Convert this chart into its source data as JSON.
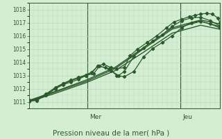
{
  "title": "Pression niveau de la mer( hPa )",
  "bg_color": "#d4eed4",
  "grid_color": "#b8d8b8",
  "line_color": "#2d5a2d",
  "ylim": [
    1010.5,
    1018.5
  ],
  "yticks": [
    1011,
    1012,
    1013,
    1014,
    1015,
    1016,
    1017,
    1018
  ],
  "xlim": [
    0.0,
    1.0
  ],
  "vline_mer": 0.305,
  "vline_jeu": 0.795,
  "series": [
    {
      "x": [
        0.0,
        0.04,
        0.09,
        0.14,
        0.18,
        0.22,
        0.26,
        0.3,
        0.33,
        0.36,
        0.39,
        0.43,
        0.46,
        0.5,
        0.53,
        0.57,
        0.62,
        0.67,
        0.72,
        0.76,
        0.8,
        0.84,
        0.87,
        0.9,
        0.93,
        0.96,
        0.99,
        1.0
      ],
      "y": [
        1011.05,
        1011.1,
        1011.5,
        1012.0,
        1012.3,
        1012.5,
        1012.7,
        1013.0,
        1013.2,
        1013.7,
        1013.85,
        1013.6,
        1013.5,
        1013.6,
        1014.5,
        1015.0,
        1015.5,
        1016.0,
        1016.6,
        1017.05,
        1017.25,
        1017.45,
        1017.55,
        1017.65,
        1017.7,
        1017.65,
        1017.35,
        1017.0
      ],
      "marker": "D",
      "ms": 2.2,
      "lw": 0.9
    },
    {
      "x": [
        0.0,
        0.04,
        0.09,
        0.14,
        0.18,
        0.22,
        0.26,
        0.3,
        0.33,
        0.36,
        0.4,
        0.43,
        0.47,
        0.5,
        0.55,
        0.6,
        0.65,
        0.7,
        0.75,
        0.8,
        0.85,
        0.9,
        0.95,
        1.0
      ],
      "y": [
        1011.15,
        1011.2,
        1011.6,
        1012.1,
        1012.4,
        1012.65,
        1012.85,
        1013.05,
        1013.25,
        1013.7,
        1013.6,
        1013.35,
        1013.0,
        1013.3,
        1014.45,
        1015.1,
        1015.6,
        1016.1,
        1016.7,
        1017.15,
        1017.35,
        1017.4,
        1017.15,
        1016.75
      ],
      "marker": "D",
      "ms": 2.2,
      "lw": 0.9
    },
    {
      "x": [
        0.0,
        0.04,
        0.09,
        0.14,
        0.18,
        0.22,
        0.26,
        0.3,
        0.34,
        0.37,
        0.42,
        0.46,
        0.5,
        0.55,
        0.6,
        0.65,
        0.7,
        0.75,
        0.8,
        0.85,
        0.9,
        0.95,
        1.0
      ],
      "y": [
        1011.1,
        1011.15,
        1011.55,
        1012.05,
        1012.35,
        1012.6,
        1012.8,
        1013.0,
        1013.15,
        1013.7,
        1013.5,
        1013.0,
        1012.9,
        1013.3,
        1014.4,
        1015.05,
        1015.5,
        1016.0,
        1016.6,
        1017.0,
        1017.1,
        1016.9,
        1016.6
      ],
      "marker": "D",
      "ms": 2.2,
      "lw": 0.9
    },
    {
      "x": [
        0.0,
        0.15,
        0.3,
        0.45,
        0.6,
        0.75,
        0.9,
        1.0
      ],
      "y": [
        1011.05,
        1011.8,
        1012.55,
        1013.5,
        1015.0,
        1016.5,
        1017.1,
        1016.7
      ],
      "marker": null,
      "ms": 0,
      "lw": 1.0
    },
    {
      "x": [
        0.0,
        0.15,
        0.3,
        0.45,
        0.6,
        0.75,
        0.9,
        1.0
      ],
      "y": [
        1011.1,
        1011.85,
        1012.65,
        1013.6,
        1015.1,
        1016.6,
        1017.2,
        1016.9
      ],
      "marker": null,
      "ms": 0,
      "lw": 1.0
    },
    {
      "x": [
        0.0,
        0.15,
        0.3,
        0.45,
        0.6,
        0.75,
        0.9,
        1.0
      ],
      "y": [
        1011.0,
        1011.7,
        1012.45,
        1013.35,
        1014.75,
        1016.2,
        1016.8,
        1016.5
      ],
      "marker": null,
      "ms": 0,
      "lw": 1.0
    }
  ]
}
